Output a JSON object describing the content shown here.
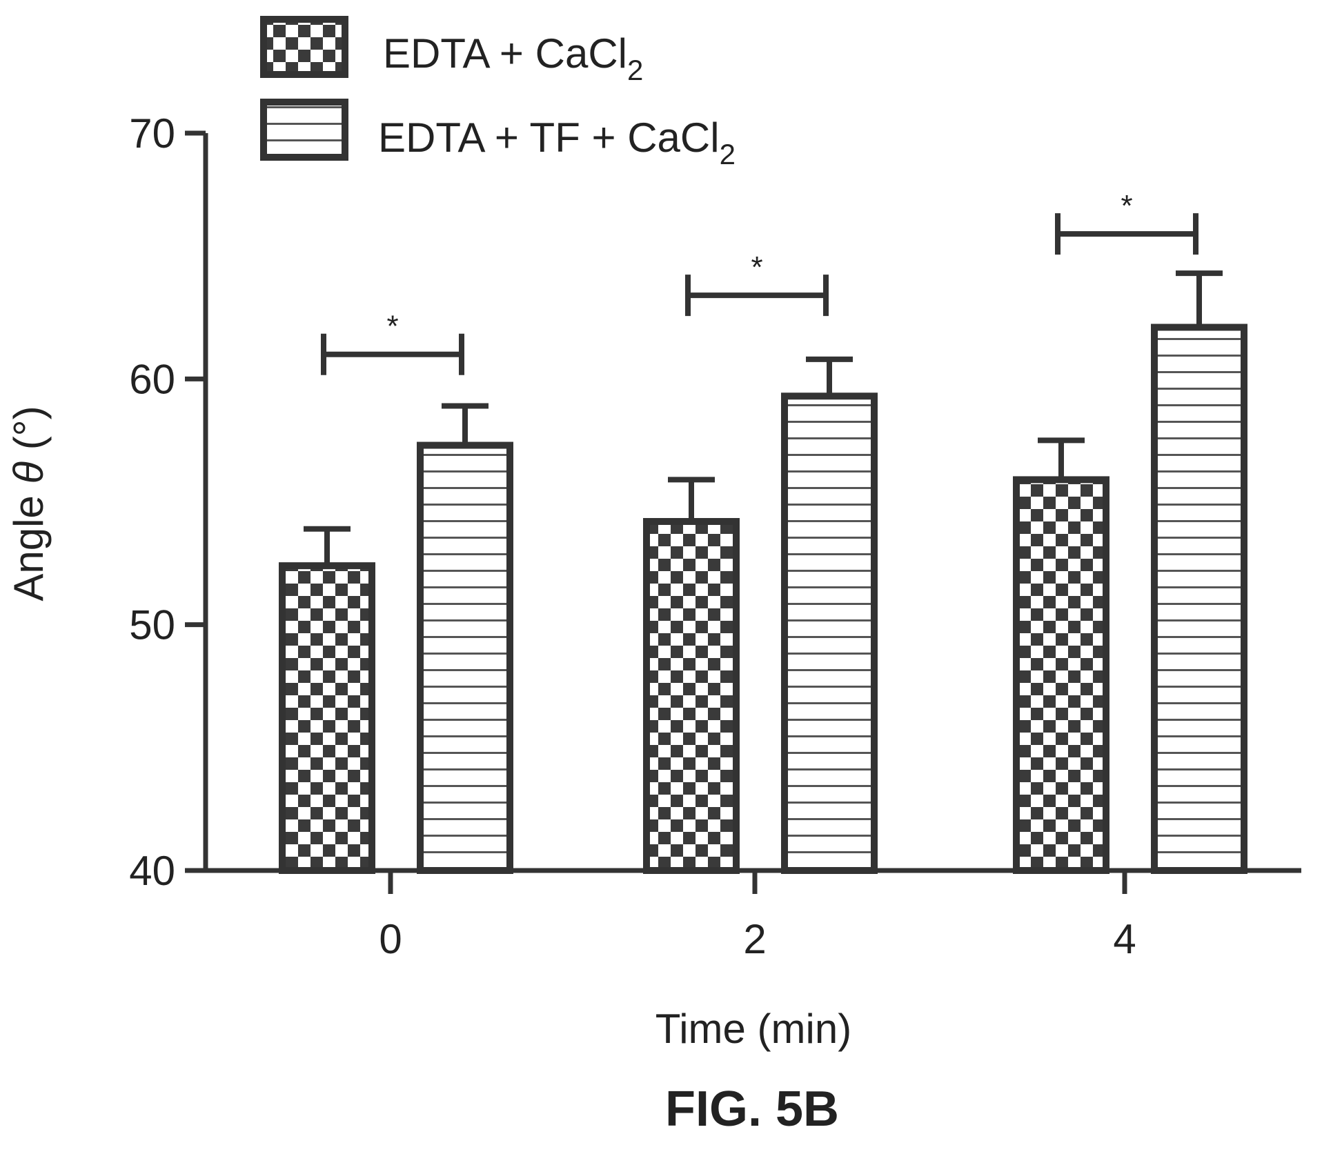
{
  "chart_data": {
    "type": "bar",
    "categories": [
      "0",
      "2",
      "4"
    ],
    "series": [
      {
        "name": "EDTA + CaCl",
        "subscript": "2",
        "pattern": "checker",
        "values": [
          52.4,
          54.2,
          55.9
        ],
        "errors": [
          1.5,
          1.7,
          1.6
        ]
      },
      {
        "name": "EDTA + TF + CaCl",
        "subscript": "2",
        "pattern": "hstripe",
        "values": [
          57.3,
          59.3,
          62.1
        ],
        "errors": [
          1.6,
          1.5,
          2.2
        ]
      }
    ],
    "significance": [
      {
        "category": "0",
        "label": "*",
        "level": 61.0
      },
      {
        "category": "2",
        "label": "*",
        "level": 63.4
      },
      {
        "category": "4",
        "label": "*",
        "level": 65.9
      }
    ],
    "xlabel": "Time (min)",
    "ylabel_prefix": "Angle ",
    "ylabel_symbol": "θ",
    "ylabel_suffix": " (°)",
    "ylim": [
      40,
      70
    ],
    "yticks": [
      40,
      50,
      60,
      70
    ],
    "grid": false,
    "legend_position": "top-left",
    "caption": "FIG. 5B",
    "colors": {
      "ink": "#333333",
      "fill_dark": "#3a3a3a",
      "background": "#ffffff"
    }
  }
}
